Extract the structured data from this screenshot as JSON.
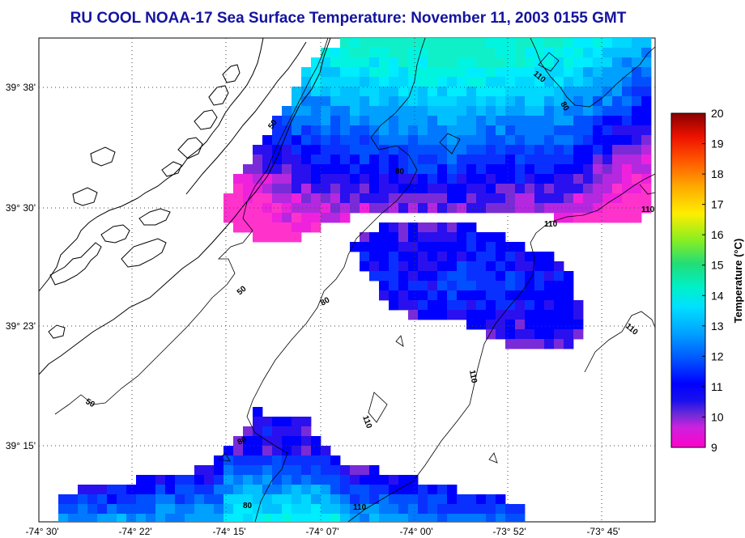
{
  "title": "RU COOL  NOAA-17  Sea Surface Temperature:  November 11, 2003 0155 GMT",
  "map": {
    "lat_ticks": [
      "39° 15'",
      "39° 23'",
      "39° 30'",
      "39° 38'"
    ],
    "lon_ticks": [
      "-74° 30'",
      "-74° 22'",
      "-74° 15'",
      "-74° 07'",
      "-74° 00'",
      "-73° 52'",
      "-73° 45'"
    ],
    "contour_labels": [
      "50",
      "50",
      "50",
      "80",
      "80",
      "80",
      "80",
      "80",
      "110",
      "110",
      "110",
      "110",
      "110",
      "110",
      "110"
    ]
  },
  "colorbar": {
    "label": "Temperature (°C)",
    "ticks": [
      "9",
      "10",
      "11",
      "12",
      "13",
      "14",
      "15",
      "16",
      "17",
      "18",
      "19",
      "20"
    ],
    "min": 9,
    "max": 20,
    "colors": [
      "#ff00cc",
      "#8a2be2",
      "#0000ff",
      "#0064ff",
      "#00b4ff",
      "#00eedd",
      "#22cc66",
      "#66dd33",
      "#ffee00",
      "#ff8800",
      "#ff2200",
      "#880000"
    ]
  },
  "colors": {
    "title": "#1414a0",
    "land_outline": "#000000",
    "grid": "#555555"
  }
}
